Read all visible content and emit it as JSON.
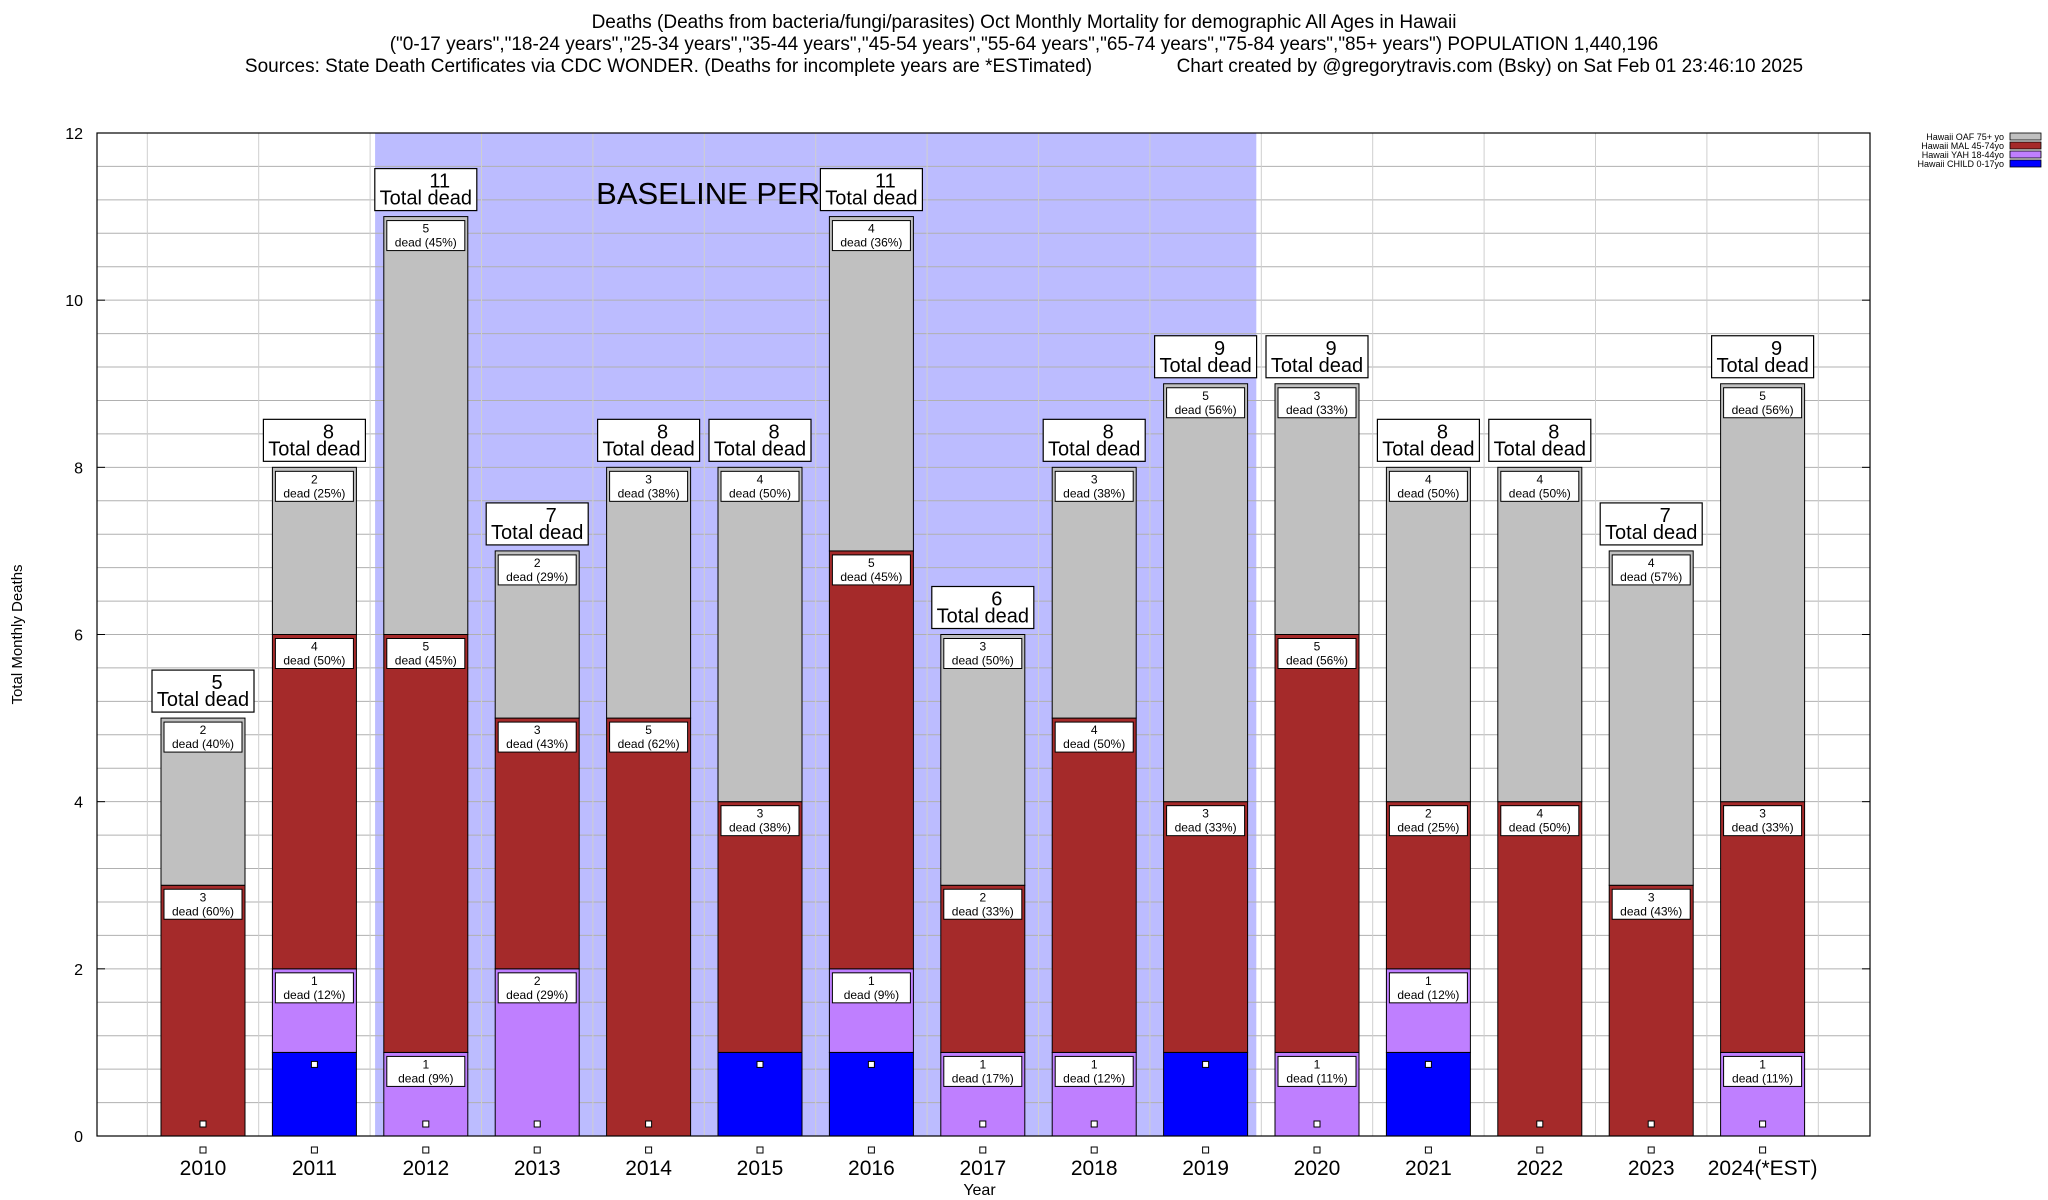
{
  "header": {
    "title_line1": "Deaths (Deaths from bacteria/fungi/parasites) Oct Monthly Mortality for demographic All Ages in Hawaii",
    "title_line2": "(\"0-17 years\",\"18-24 years\",\"25-34 years\",\"35-44 years\",\"45-54 years\",\"55-64 years\",\"65-74 years\",\"75-84 years\",\"85+ years\") POPULATION 1,440,196",
    "sources": "Sources: State Death Certificates via CDC WONDER. (Deaths for incomplete years are *ESTimated)",
    "credit": "Chart created by @gregorytravis.com (Bsky) on Sat Feb 01 23:46:10 2025"
  },
  "chart_data": {
    "type": "bar",
    "stacked": true,
    "xlabel": "Year",
    "ylabel": "Total Monthly Deaths",
    "ylim": [
      0,
      12
    ],
    "yticks": [
      0,
      2,
      4,
      6,
      8,
      10,
      12
    ],
    "grid": true,
    "legend_position": "top-right",
    "baseline_label": "BASELINE PERIOD",
    "baseline_range": [
      "2012",
      "2019"
    ],
    "total_suffix": "Total dead",
    "categories": [
      "2010",
      "2011",
      "2012",
      "2013",
      "2014",
      "2015",
      "2016",
      "2017",
      "2018",
      "2019",
      "2020",
      "2021",
      "2022",
      "2023",
      "2024(*EST)"
    ],
    "series": [
      {
        "name": "Hawaii CHILD 0-17yo",
        "color": "#0000ff",
        "values": [
          0,
          1,
          0,
          0,
          0,
          1,
          1,
          0,
          0,
          1,
          0,
          1,
          0,
          0,
          0
        ]
      },
      {
        "name": "Hawaii YAH 18-44yo",
        "color": "#bf7fff",
        "values": [
          0,
          1,
          1,
          2,
          0,
          0,
          1,
          1,
          1,
          0,
          1,
          1,
          0,
          0,
          1
        ]
      },
      {
        "name": "Hawaii MAL 45-74yo",
        "color": "#a52a2a",
        "values": [
          3,
          4,
          5,
          3,
          5,
          3,
          5,
          2,
          4,
          3,
          5,
          2,
          4,
          3,
          3
        ]
      },
      {
        "name": "Hawaii OAF 75+ yo",
        "color": "#c0c0c0",
        "values": [
          2,
          2,
          5,
          2,
          3,
          4,
          4,
          3,
          3,
          5,
          3,
          4,
          4,
          4,
          5
        ]
      }
    ],
    "segment_labels": [
      {
        "category": "2010",
        "series": "Hawaii MAL 45-74yo",
        "count": "3",
        "text": "dead (60%)"
      },
      {
        "category": "2010",
        "series": "Hawaii OAF 75+ yo",
        "count": "2",
        "text": "dead (40%)"
      },
      {
        "category": "2011",
        "series": "Hawaii YAH 18-44yo",
        "count": "1",
        "text": "dead (12%)"
      },
      {
        "category": "2011",
        "series": "Hawaii MAL 45-74yo",
        "count": "4",
        "text": "dead (50%)"
      },
      {
        "category": "2011",
        "series": "Hawaii OAF 75+ yo",
        "count": "2",
        "text": "dead (25%)"
      },
      {
        "category": "2012",
        "series": "Hawaii YAH 18-44yo",
        "count": "1",
        "text": "dead (9%)"
      },
      {
        "category": "2012",
        "series": "Hawaii MAL 45-74yo",
        "count": "5",
        "text": "dead (45%)"
      },
      {
        "category": "2012",
        "series": "Hawaii OAF 75+ yo",
        "count": "5",
        "text": "dead (45%)"
      },
      {
        "category": "2013",
        "series": "Hawaii YAH 18-44yo",
        "count": "2",
        "text": "dead (29%)"
      },
      {
        "category": "2013",
        "series": "Hawaii MAL 45-74yo",
        "count": "3",
        "text": "dead (43%)"
      },
      {
        "category": "2013",
        "series": "Hawaii OAF 75+ yo",
        "count": "2",
        "text": "dead (29%)"
      },
      {
        "category": "2014",
        "series": "Hawaii MAL 45-74yo",
        "count": "5",
        "text": "dead (62%)"
      },
      {
        "category": "2014",
        "series": "Hawaii OAF 75+ yo",
        "count": "3",
        "text": "dead (38%)"
      },
      {
        "category": "2015",
        "series": "Hawaii MAL 45-74yo",
        "count": "3",
        "text": "dead (38%)"
      },
      {
        "category": "2015",
        "series": "Hawaii OAF 75+ yo",
        "count": "4",
        "text": "dead (50%)"
      },
      {
        "category": "2016",
        "series": "Hawaii YAH 18-44yo",
        "count": "1",
        "text": "dead (9%)"
      },
      {
        "category": "2016",
        "series": "Hawaii MAL 45-74yo",
        "count": "5",
        "text": "dead (45%)"
      },
      {
        "category": "2016",
        "series": "Hawaii OAF 75+ yo",
        "count": "4",
        "text": "dead (36%)"
      },
      {
        "category": "2017",
        "series": "Hawaii YAH 18-44yo",
        "count": "1",
        "text": "dead (17%)"
      },
      {
        "category": "2017",
        "series": "Hawaii MAL 45-74yo",
        "count": "2",
        "text": "dead (33%)"
      },
      {
        "category": "2017",
        "series": "Hawaii OAF 75+ yo",
        "count": "3",
        "text": "dead (50%)"
      },
      {
        "category": "2018",
        "series": "Hawaii YAH 18-44yo",
        "count": "1",
        "text": "dead (12%)"
      },
      {
        "category": "2018",
        "series": "Hawaii MAL 45-74yo",
        "count": "4",
        "text": "dead (50%)"
      },
      {
        "category": "2018",
        "series": "Hawaii OAF 75+ yo",
        "count": "3",
        "text": "dead (38%)"
      },
      {
        "category": "2019",
        "series": "Hawaii MAL 45-74yo",
        "count": "3",
        "text": "dead (33%)"
      },
      {
        "category": "2019",
        "series": "Hawaii OAF 75+ yo",
        "count": "5",
        "text": "dead (56%)"
      },
      {
        "category": "2020",
        "series": "Hawaii YAH 18-44yo",
        "count": "1",
        "text": "dead (11%)"
      },
      {
        "category": "2020",
        "series": "Hawaii MAL 45-74yo",
        "count": "5",
        "text": "dead (56%)"
      },
      {
        "category": "2020",
        "series": "Hawaii OAF 75+ yo",
        "count": "3",
        "text": "dead (33%)"
      },
      {
        "category": "2021",
        "series": "Hawaii YAH 18-44yo",
        "count": "1",
        "text": "dead (12%)"
      },
      {
        "category": "2021",
        "series": "Hawaii MAL 45-74yo",
        "count": "2",
        "text": "dead (25%)"
      },
      {
        "category": "2021",
        "series": "Hawaii OAF 75+ yo",
        "count": "4",
        "text": "dead (50%)"
      },
      {
        "category": "2022",
        "series": "Hawaii MAL 45-74yo",
        "count": "4",
        "text": "dead (50%)"
      },
      {
        "category": "2022",
        "series": "Hawaii OAF 75+ yo",
        "count": "4",
        "text": "dead (50%)"
      },
      {
        "category": "2023",
        "series": "Hawaii MAL 45-74yo",
        "count": "3",
        "text": "dead (43%)"
      },
      {
        "category": "2023",
        "series": "Hawaii OAF 75+ yo",
        "count": "4",
        "text": "dead (57%)"
      },
      {
        "category": "2024(*EST)",
        "series": "Hawaii YAH 18-44yo",
        "count": "1",
        "text": "dead (11%)"
      },
      {
        "category": "2024(*EST)",
        "series": "Hawaii MAL 45-74yo",
        "count": "3",
        "text": "dead (33%)"
      },
      {
        "category": "2024(*EST)",
        "series": "Hawaii OAF 75+ yo",
        "count": "5",
        "text": "dead (56%)"
      }
    ]
  }
}
